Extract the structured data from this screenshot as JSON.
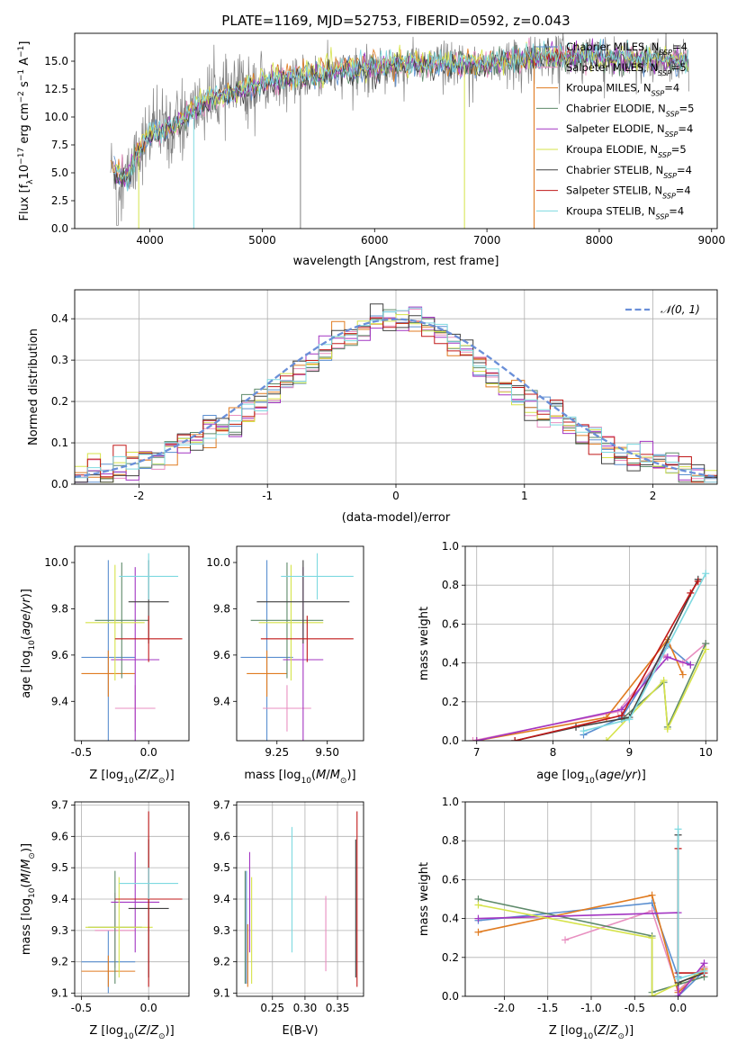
{
  "colors": {
    "Chabrier MILES": "#5b8fd0",
    "Salpeter MILES": "#e88fc0",
    "Kroupa MILES": "#e07b20",
    "Chabrier ELODIE": "#5e8a6a",
    "Salpeter ELODIE": "#a335c2",
    "Kroupa ELODIE": "#d6e34a",
    "Chabrier STELIB": "#404040",
    "Salpeter STELIB": "#c01818",
    "Kroupa STELIB": "#7ed9e0",
    "observed": "#808080",
    "gaussian": "#6a8fd8"
  },
  "chart_data": [
    {
      "id": "spectrum",
      "type": "line",
      "title": "PLATE=1169, MJD=52753, FIBERID=0592, z=0.043",
      "xlabel": "wavelength [Angstrom, rest frame]",
      "ylabel": "Flux [fλ10⁻¹⁷ erg cm⁻² s⁻¹ A⁻¹]",
      "xlim": [
        3330,
        9050
      ],
      "ylim": [
        0,
        17.5
      ],
      "xticks": [
        4000,
        5000,
        6000,
        7000,
        8000,
        9000
      ],
      "yticks": [
        0.0,
        2.5,
        5.0,
        7.5,
        10.0,
        12.5,
        15.0
      ],
      "legend_position": "top-right",
      "legend": [
        "Chabrier MILES, N_SSP=4",
        "Salpeter MILES, N_SSP=5",
        "Kroupa MILES, N_SSP=4",
        "Chabrier ELODIE, N_SSP=5",
        "Salpeter ELODIE, N_SSP=4",
        "Kroupa ELODIE, N_SSP=5",
        "Chabrier STELIB, N_SSP=4",
        "Salpeter STELIB, N_SSP=4",
        "Kroupa STELIB, N_SSP=4"
      ],
      "continuum": [
        [
          3650,
          5.5
        ],
        [
          3800,
          4.5
        ],
        [
          3900,
          7.0
        ],
        [
          4000,
          8.5
        ],
        [
          4200,
          9.0
        ],
        [
          4500,
          11.5
        ],
        [
          4800,
          12.3
        ],
        [
          5000,
          13.2
        ],
        [
          5300,
          13.5
        ],
        [
          5600,
          14.0
        ],
        [
          6000,
          14.5
        ],
        [
          6300,
          14.8
        ],
        [
          6800,
          14.7
        ],
        [
          7200,
          15.0
        ],
        [
          7500,
          15.4
        ],
        [
          7800,
          15.5
        ],
        [
          8300,
          15.2
        ],
        [
          8800,
          15.0
        ]
      ],
      "drops": [
        {
          "x": 3900,
          "series": "Kroupa ELODIE"
        },
        {
          "x": 4390,
          "series": "Kroupa STELIB"
        },
        {
          "x": 5340,
          "series": "observed"
        },
        {
          "x": 6800,
          "series": "Kroupa ELODIE"
        },
        {
          "x": 7420,
          "series": "Kroupa MILES"
        }
      ]
    },
    {
      "id": "residuals",
      "type": "step-histogram",
      "xlabel": "(data-model)/error",
      "ylabel": "Normed distribution",
      "xlim": [
        -2.5,
        2.5
      ],
      "ylim": [
        0,
        0.47
      ],
      "xticks": [
        -2,
        -1,
        0,
        1,
        2
      ],
      "yticks": [
        0.0,
        0.1,
        0.2,
        0.3,
        0.4
      ],
      "grid": true,
      "legend_position": "top-right",
      "legend": [
        "𝒩(0, 1)"
      ],
      "bin_width": 0.1,
      "bin_start": -2.5
    },
    {
      "id": "age-vs-Z",
      "type": "errorbar",
      "xlabel": "Z [log10(Z/Z⊙)]",
      "ylabel": "age  [log10(age/yr)]",
      "xlim": [
        -0.55,
        0.3
      ],
      "ylim": [
        9.23,
        10.07
      ],
      "xticks": [
        -0.5,
        0.0
      ],
      "yticks": [
        9.4,
        9.6,
        9.8,
        10.0
      ],
      "points": [
        {
          "series": "Chabrier MILES",
          "x": -0.3,
          "xerr": 0.2,
          "y": 9.59,
          "yerr": 0.42
        },
        {
          "series": "Salpeter MILES",
          "x": -0.1,
          "xerr": 0.15,
          "y": 9.37,
          "yerr": 0.1
        },
        {
          "series": "Kroupa MILES",
          "x": -0.3,
          "xerr": 0.2,
          "y": 9.52,
          "yerr": 0.1
        },
        {
          "series": "Chabrier ELODIE",
          "x": -0.2,
          "xerr": 0.2,
          "y": 9.75,
          "yerr": 0.25
        },
        {
          "series": "Salpeter ELODIE",
          "x": -0.1,
          "xerr": 0.18,
          "y": 9.58,
          "yerr": 0.4
        },
        {
          "series": "Kroupa ELODIE",
          "x": -0.25,
          "xerr": 0.22,
          "y": 9.74,
          "yerr": 0.25
        },
        {
          "series": "Chabrier STELIB",
          "x": 0.0,
          "xerr": 0.15,
          "y": 9.83,
          "yerr": 0.18
        },
        {
          "series": "Salpeter STELIB",
          "x": 0.0,
          "xerr": 0.25,
          "y": 9.67,
          "yerr": 0.1
        },
        {
          "series": "Kroupa STELIB",
          "x": 0.0,
          "xerr": 0.22,
          "y": 9.94,
          "yerr": 0.1
        }
      ]
    },
    {
      "id": "age-vs-mass",
      "type": "errorbar",
      "xlabel": "mass [log10(M/M⊙)]",
      "ylabel": "",
      "xlim": [
        9.05,
        9.68
      ],
      "ylim": [
        9.23,
        10.07
      ],
      "xticks": [
        9.25,
        9.5
      ],
      "yticks": [
        9.4,
        9.6,
        9.8,
        10.0
      ],
      "points": [
        {
          "series": "Chabrier MILES",
          "x": 9.2,
          "xerr": 0.13,
          "y": 9.59,
          "yerr": 0.42
        },
        {
          "series": "Salpeter MILES",
          "x": 9.3,
          "xerr": 0.12,
          "y": 9.37,
          "yerr": 0.1
        },
        {
          "series": "Kroupa MILES",
          "x": 9.2,
          "xerr": 0.1,
          "y": 9.52,
          "yerr": 0.1
        },
        {
          "series": "Chabrier ELODIE",
          "x": 9.3,
          "xerr": 0.18,
          "y": 9.75,
          "yerr": 0.25
        },
        {
          "series": "Salpeter ELODIE",
          "x": 9.38,
          "xerr": 0.1,
          "y": 9.58,
          "yerr": 0.4
        },
        {
          "series": "Kroupa ELODIE",
          "x": 9.32,
          "xerr": 0.16,
          "y": 9.74,
          "yerr": 0.25
        },
        {
          "series": "Chabrier STELIB",
          "x": 9.38,
          "xerr": 0.23,
          "y": 9.83,
          "yerr": 0.18
        },
        {
          "series": "Salpeter STELIB",
          "x": 9.4,
          "xerr": 0.23,
          "y": 9.67,
          "yerr": 0.1
        },
        {
          "series": "Kroupa STELIB",
          "x": 9.45,
          "xerr": 0.18,
          "y": 9.94,
          "yerr": 0.1
        }
      ]
    },
    {
      "id": "weight-vs-age",
      "type": "line",
      "xlabel": "age  [log10(age/yr)]",
      "ylabel": "mass weight",
      "xlim": [
        6.85,
        10.15
      ],
      "ylim": [
        0,
        1.0
      ],
      "xticks": [
        7,
        8,
        9,
        10
      ],
      "yticks": [
        0.0,
        0.2,
        0.4,
        0.6,
        0.8,
        1.0
      ],
      "grid": true,
      "series": [
        {
          "name": "Chabrier MILES",
          "x": [
            8.4,
            8.9,
            9.5,
            9.8
          ],
          "y": [
            0.03,
            0.12,
            0.49,
            0.39
          ]
        },
        {
          "name": "Salpeter MILES",
          "x": [
            6.95,
            8.85,
            9.45,
            9.7,
            10.0
          ],
          "y": [
            0.0,
            0.15,
            0.44,
            0.4,
            0.5
          ]
        },
        {
          "name": "Kroupa MILES",
          "x": [
            7.0,
            8.7,
            9.5,
            9.7
          ],
          "y": [
            0.0,
            0.12,
            0.52,
            0.34
          ]
        },
        {
          "name": "Chabrier ELODIE",
          "x": [
            8.9,
            9.45,
            9.5,
            10.0
          ],
          "y": [
            0.11,
            0.3,
            0.07,
            0.5
          ]
        },
        {
          "name": "Salpeter ELODIE",
          "x": [
            7.0,
            8.9,
            9.5,
            9.8
          ],
          "y": [
            0.0,
            0.16,
            0.43,
            0.39
          ]
        },
        {
          "name": "Kroupa ELODIE",
          "x": [
            8.7,
            9.45,
            9.5,
            10.0
          ],
          "y": [
            0.0,
            0.31,
            0.06,
            0.47
          ]
        },
        {
          "name": "Chabrier STELIB",
          "x": [
            7.5,
            8.3,
            9.0,
            9.9
          ],
          "y": [
            0.0,
            0.07,
            0.12,
            0.83
          ]
        },
        {
          "name": "Salpeter STELIB",
          "x": [
            7.5,
            8.9,
            9.8,
            9.9
          ],
          "y": [
            0.0,
            0.13,
            0.76,
            0.82
          ]
        },
        {
          "name": "Kroupa STELIB",
          "x": [
            8.4,
            9.0,
            10.0
          ],
          "y": [
            0.05,
            0.11,
            0.86
          ]
        }
      ]
    },
    {
      "id": "mass-vs-Z",
      "type": "errorbar",
      "xlabel": "Z [log10(Z/Z⊙)]",
      "ylabel": "mass [log10(M/M⊙)]",
      "xlim": [
        -0.55,
        0.3
      ],
      "ylim": [
        9.09,
        9.71
      ],
      "xticks": [
        -0.5,
        0.0
      ],
      "yticks": [
        9.1,
        9.2,
        9.3,
        9.4,
        9.5,
        9.6,
        9.7
      ],
      "grid": true,
      "points": [
        {
          "series": "Chabrier MILES",
          "x": -0.3,
          "xerr": 0.2,
          "y": 9.2,
          "yerr": 0.1
        },
        {
          "series": "Salpeter MILES",
          "x": -0.25,
          "xerr": 0.15,
          "y": 9.3,
          "yerr": 0.12
        },
        {
          "series": "Kroupa MILES",
          "x": -0.3,
          "xerr": 0.2,
          "y": 9.17,
          "yerr": 0.05
        },
        {
          "series": "Chabrier ELODIE",
          "x": -0.25,
          "xerr": 0.2,
          "y": 9.31,
          "yerr": 0.18
        },
        {
          "series": "Salpeter ELODIE",
          "x": -0.1,
          "xerr": 0.18,
          "y": 9.39,
          "yerr": 0.16
        },
        {
          "series": "Kroupa ELODIE",
          "x": -0.22,
          "xerr": 0.25,
          "y": 9.31,
          "yerr": 0.16
        },
        {
          "series": "Chabrier STELIB",
          "x": 0.0,
          "xerr": 0.15,
          "y": 9.37,
          "yerr": 0.22
        },
        {
          "series": "Salpeter STELIB",
          "x": 0.0,
          "xerr": 0.25,
          "y": 9.4,
          "yerr": 0.28
        },
        {
          "series": "Kroupa STELIB",
          "x": 0.0,
          "xerr": 0.22,
          "y": 9.45,
          "yerr": 0.05
        }
      ]
    },
    {
      "id": "mass-vs-EBV",
      "type": "errorbar",
      "xlabel": "E(B-V)",
      "ylabel": "",
      "xlim": [
        0.195,
        0.39
      ],
      "ylim": [
        9.09,
        9.71
      ],
      "xticks": [
        0.25,
        0.3,
        0.35
      ],
      "yticks": [
        9.1,
        9.2,
        9.3,
        9.4,
        9.5,
        9.6,
        9.7
      ],
      "grid": true,
      "points": [
        {
          "series": "Chabrier MILES",
          "x": 0.21,
          "y": 9.31,
          "yerr": 0.18
        },
        {
          "series": "Salpeter MILES",
          "x": 0.332,
          "y": 9.29,
          "yerr": 0.12
        },
        {
          "series": "Kroupa MILES",
          "x": 0.212,
          "y": 9.22,
          "yerr": 0.1
        },
        {
          "series": "Chabrier ELODIE",
          "x": 0.208,
          "y": 9.31,
          "yerr": 0.18
        },
        {
          "series": "Salpeter ELODIE",
          "x": 0.215,
          "y": 9.39,
          "yerr": 0.16
        },
        {
          "series": "Kroupa ELODIE",
          "x": 0.218,
          "y": 9.3,
          "yerr": 0.17
        },
        {
          "series": "Chabrier STELIB",
          "x": 0.378,
          "y": 9.37,
          "yerr": 0.22
        },
        {
          "series": "Salpeter STELIB",
          "x": 0.38,
          "y": 9.4,
          "yerr": 0.28
        },
        {
          "series": "Kroupa STELIB",
          "x": 0.28,
          "y": 9.43,
          "yerr": 0.2
        }
      ]
    },
    {
      "id": "weight-vs-Z",
      "type": "line",
      "xlabel": "Z [log10(Z/Z⊙)]",
      "ylabel": "mass weight",
      "xlim": [
        -2.45,
        0.45
      ],
      "ylim": [
        0,
        1.0
      ],
      "xticks": [
        -2.0,
        -1.5,
        -1.0,
        -0.5,
        0.0
      ],
      "yticks": [
        0.0,
        0.2,
        0.4,
        0.6,
        0.8,
        1.0
      ],
      "grid": true,
      "series": [
        {
          "name": "Chabrier MILES",
          "x": [
            -2.3,
            -0.3,
            0.0,
            0.0,
            0.3
          ],
          "y": [
            0.39,
            0.48,
            0.1,
            0.0,
            0.13
          ]
        },
        {
          "name": "Salpeter MILES",
          "x": [
            -1.3,
            -0.3,
            0.0,
            0.3
          ],
          "y": [
            0.29,
            0.44,
            0.03,
            0.15
          ]
        },
        {
          "name": "Kroupa MILES",
          "x": [
            -2.3,
            -0.3,
            0.0,
            0.3
          ],
          "y": [
            0.33,
            0.52,
            0.02,
            0.14
          ]
        },
        {
          "name": "Chabrier ELODIE",
          "x": [
            -2.3,
            -0.3,
            -0.3,
            0.3
          ],
          "y": [
            0.5,
            0.31,
            0.02,
            0.1
          ]
        },
        {
          "name": "Salpeter ELODIE",
          "x": [
            -2.3,
            0.0,
            0.0,
            0.3
          ],
          "y": [
            0.4,
            0.43,
            0.0,
            0.17
          ]
        },
        {
          "name": "Kroupa ELODIE",
          "x": [
            -2.3,
            -0.3,
            -0.3,
            0.3
          ],
          "y": [
            0.47,
            0.3,
            0.0,
            0.13
          ]
        },
        {
          "name": "Chabrier STELIB",
          "x": [
            0.0,
            0.0,
            0.3
          ],
          "y": [
            0.83,
            0.07,
            0.12
          ]
        },
        {
          "name": "Salpeter STELIB",
          "x": [
            0.0,
            0.0,
            0.3
          ],
          "y": [
            0.76,
            0.12,
            0.12
          ]
        },
        {
          "name": "Kroupa STELIB",
          "x": [
            0.0,
            0.0,
            0.3
          ],
          "y": [
            0.86,
            0.09,
            0.13
          ]
        }
      ]
    }
  ]
}
